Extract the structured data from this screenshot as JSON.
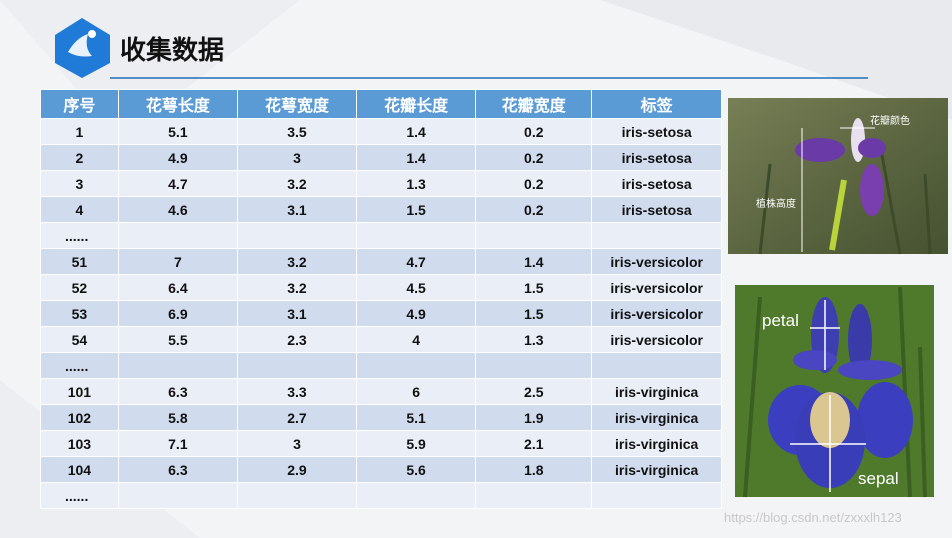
{
  "header": {
    "title": "收集数据"
  },
  "table": {
    "columns": [
      "序号",
      "花萼长度",
      "花萼宽度",
      "花瓣长度",
      "花瓣宽度",
      "标签"
    ],
    "rows": [
      [
        "1",
        "5.1",
        "3.5",
        "1.4",
        "0.2",
        "iris-setosa"
      ],
      [
        "2",
        "4.9",
        "3",
        "1.4",
        "0.2",
        "iris-setosa"
      ],
      [
        "3",
        "4.7",
        "3.2",
        "1.3",
        "0.2",
        "iris-setosa"
      ],
      [
        "4",
        "4.6",
        "3.1",
        "1.5",
        "0.2",
        "iris-setosa"
      ],
      [
        "......"
      ],
      [
        "51",
        "7",
        "3.2",
        "4.7",
        "1.4",
        "iris-versicolor"
      ],
      [
        "52",
        "6.4",
        "3.2",
        "4.5",
        "1.5",
        "iris-versicolor"
      ],
      [
        "53",
        "6.9",
        "3.1",
        "4.9",
        "1.5",
        "iris-versicolor"
      ],
      [
        "54",
        "5.5",
        "2.3",
        "4",
        "1.3",
        "iris-versicolor"
      ],
      [
        "......"
      ],
      [
        "101",
        "6.3",
        "3.3",
        "6",
        "2.5",
        "iris-virginica"
      ],
      [
        "102",
        "5.8",
        "2.7",
        "5.1",
        "1.9",
        "iris-virginica"
      ],
      [
        "103",
        "7.1",
        "3",
        "5.9",
        "2.1",
        "iris-virginica"
      ],
      [
        "104",
        "6.3",
        "2.9",
        "5.6",
        "1.8",
        "iris-virginica"
      ],
      [
        "......"
      ]
    ]
  },
  "images": {
    "photo1": {
      "labels": [
        "花瓣颜色",
        "植株高度"
      ]
    },
    "photo2": {
      "labels": [
        "petal",
        "sepal"
      ]
    }
  },
  "watermark": "https://blog.csdn.net/zxxxlh123"
}
